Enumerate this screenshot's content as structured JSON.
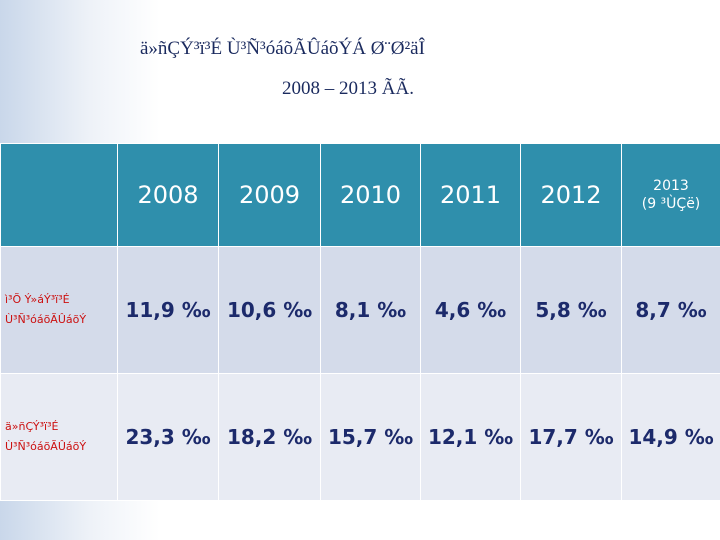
{
  "title": {
    "line1": "ä»ñÇÝ³ï³É Ù³Ñ³óáõÃÛáõÝÁ Ø¨Ø²äÎ",
    "line2": "2008 – 2013 ÃÃ."
  },
  "table": {
    "header": [
      "2008",
      "2009",
      "2010",
      "2011",
      "2012"
    ],
    "last_header": [
      "2013",
      "(9 ³ÙÇë)"
    ],
    "rows": [
      {
        "label": [
          "ì³Õ Ý»áÝ³ï³É",
          "Ù³Ñ³óáõÃÛáõÝ"
        ],
        "cells": [
          "11,9 ‰",
          "10,6 ‰",
          "8,1 ‰",
          "4,6 ‰",
          "5,8 ‰",
          "8,7 ‰"
        ]
      },
      {
        "label": [
          "ä»ñÇÝ³ï³É",
          "Ù³Ñ³óáõÃÛáõÝ"
        ],
        "cells": [
          "23,3 ‰",
          "18,2 ‰",
          "15,7 ‰",
          "12,1 ‰",
          "17,7 ‰",
          "14,9 ‰"
        ]
      }
    ]
  }
}
